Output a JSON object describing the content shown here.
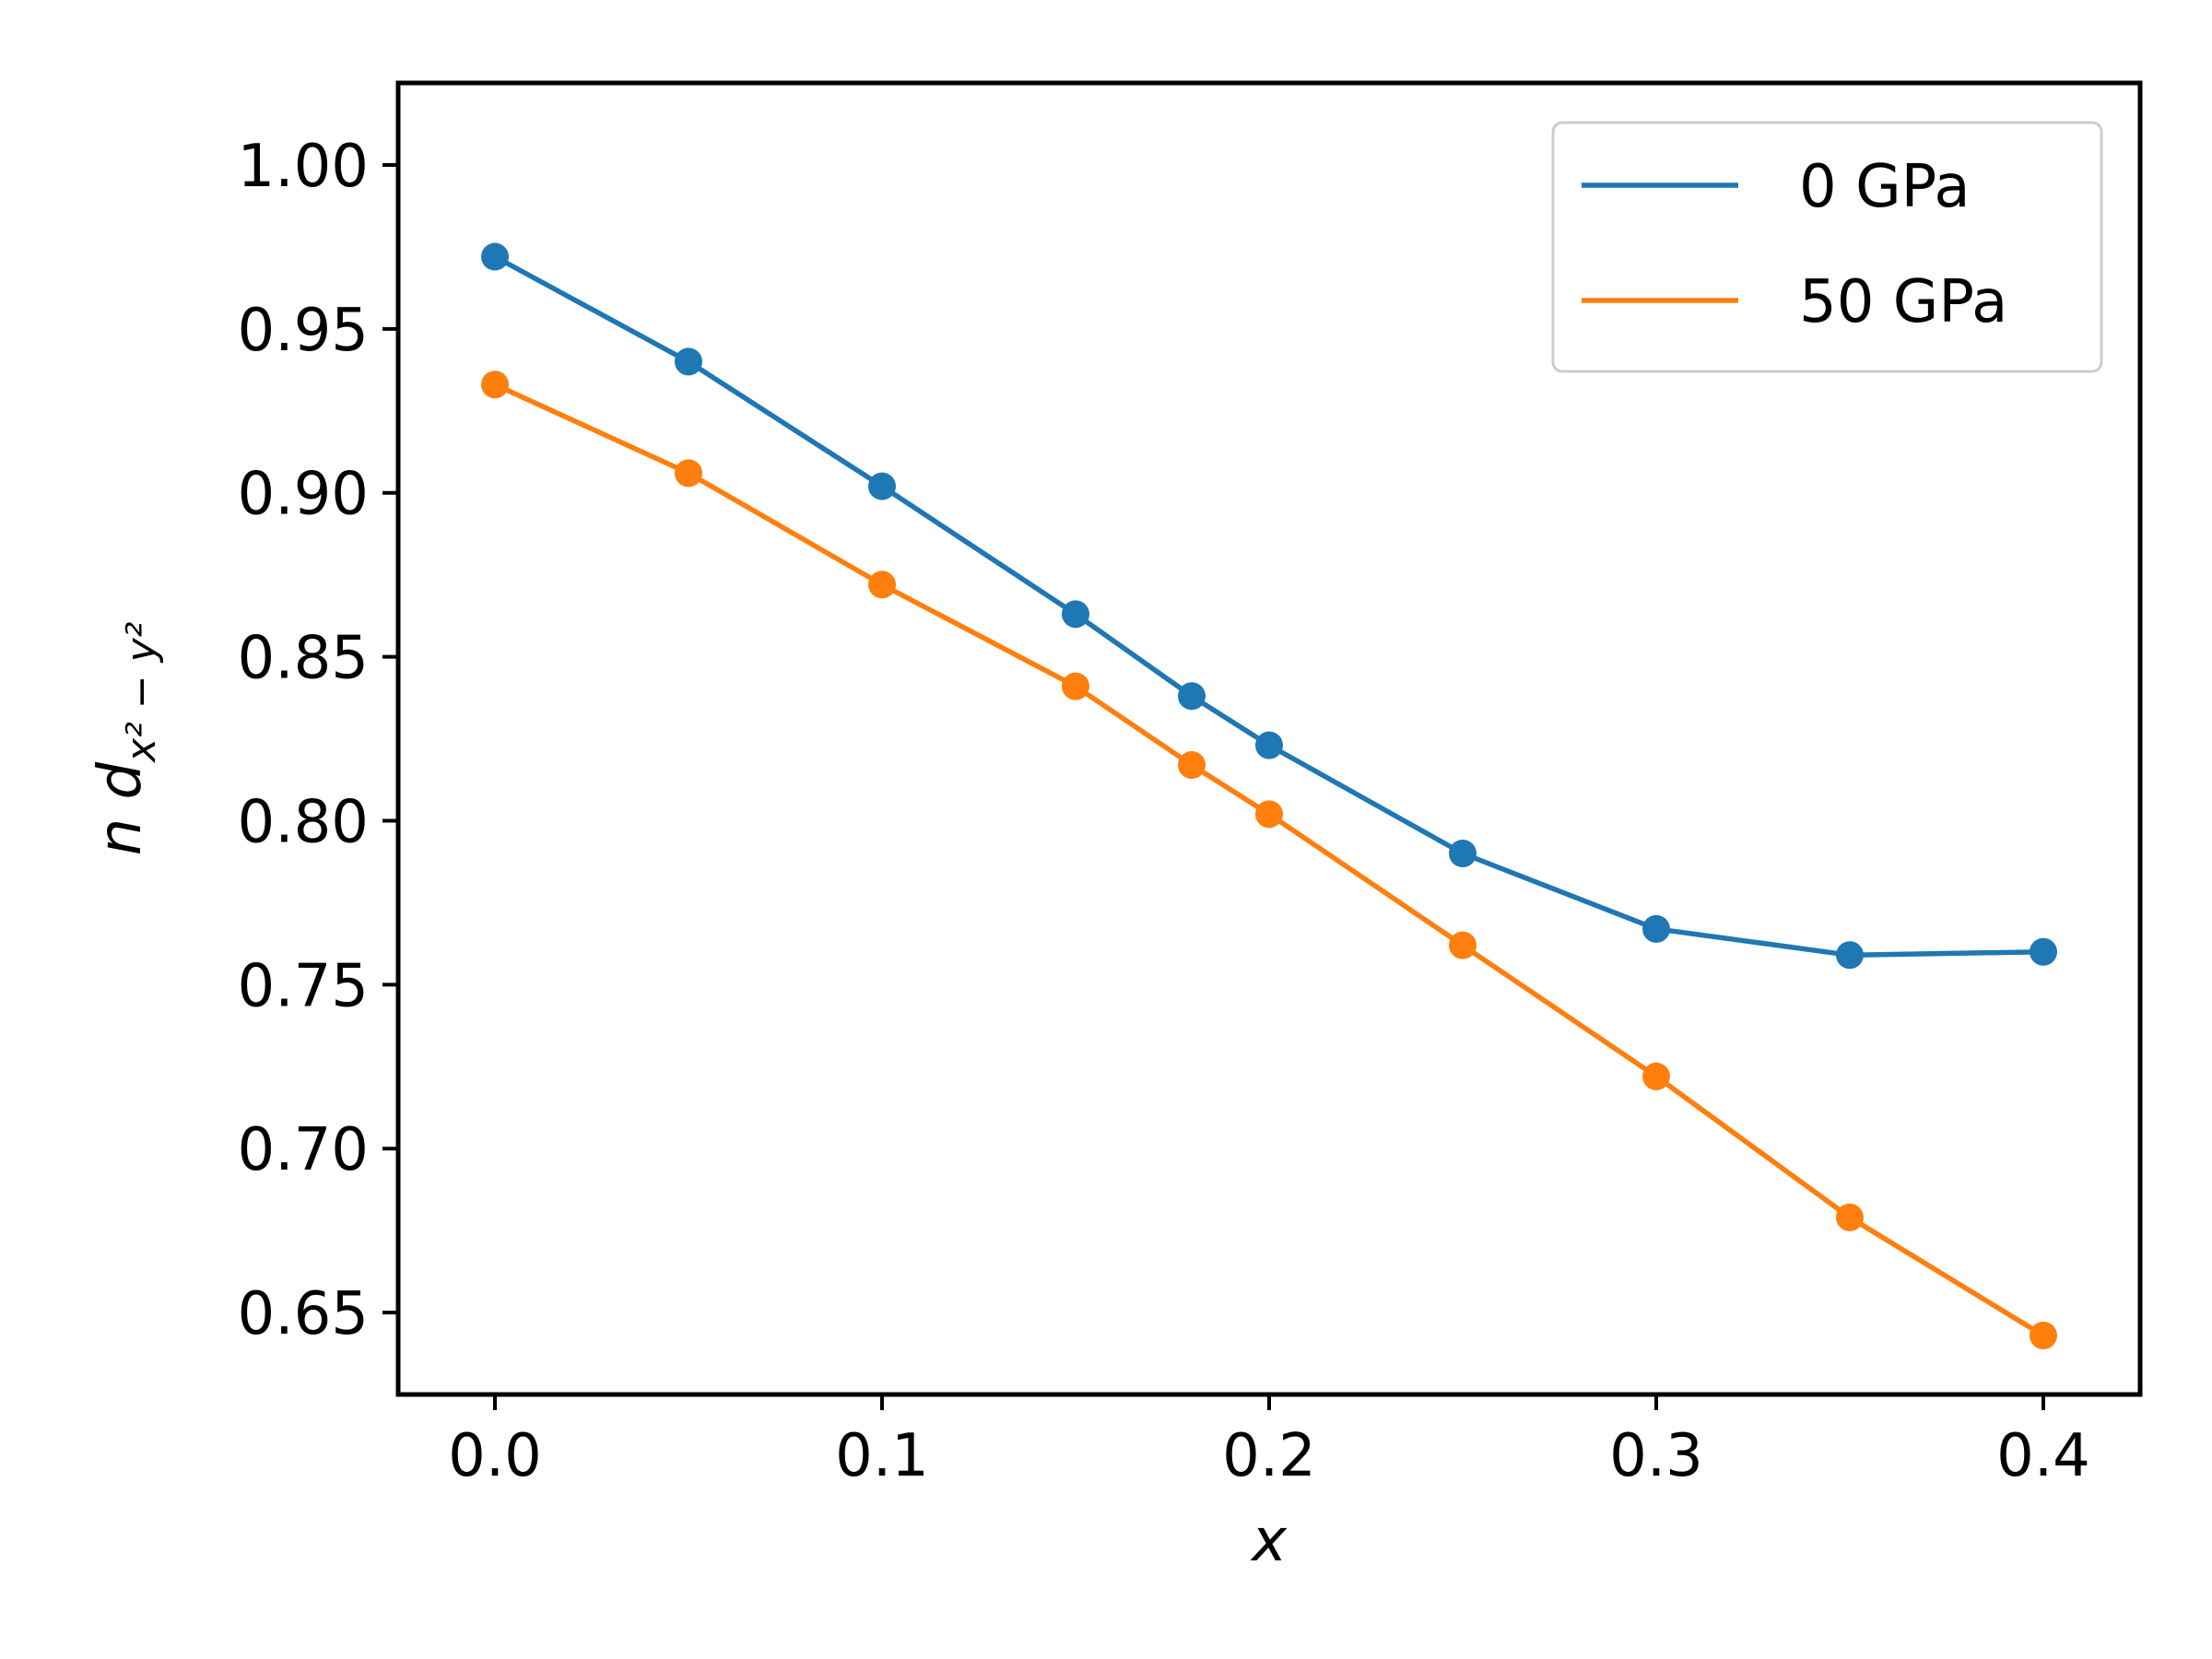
{
  "chart_data": {
    "type": "line",
    "x": [
      0.0,
      0.05,
      0.1,
      0.15,
      0.18,
      0.2,
      0.25,
      0.3,
      0.35,
      0.4
    ],
    "series": [
      {
        "name": "0 GPa",
        "color": "#1f77b4",
        "values": [
          0.972,
          0.94,
          0.902,
          0.863,
          0.838,
          0.823,
          0.79,
          0.767,
          0.759,
          0.76
        ]
      },
      {
        "name": "50 GPa",
        "color": "#ff7f0e",
        "values": [
          0.933,
          0.906,
          0.872,
          0.841,
          0.817,
          0.802,
          0.762,
          0.722,
          0.679,
          0.643
        ]
      }
    ],
    "xlabel": "x",
    "ylabel": "n d_{x²−y²}",
    "ylabel_parts": {
      "main": "n d",
      "sub": "x² − y²"
    },
    "xlim": [
      -0.025,
      0.425
    ],
    "ylim": [
      0.625,
      1.025
    ],
    "xticks": [
      0.0,
      0.1,
      0.2,
      0.3,
      0.4
    ],
    "xtick_labels": [
      "0.0",
      "0.1",
      "0.2",
      "0.3",
      "0.4"
    ],
    "yticks": [
      0.65,
      0.7,
      0.75,
      0.8,
      0.85,
      0.9,
      0.95,
      1.0
    ],
    "ytick_labels": [
      "0.65",
      "0.70",
      "0.75",
      "0.80",
      "0.85",
      "0.90",
      "0.95",
      "1.00"
    ],
    "grid": false,
    "legend_position": "top-right"
  }
}
